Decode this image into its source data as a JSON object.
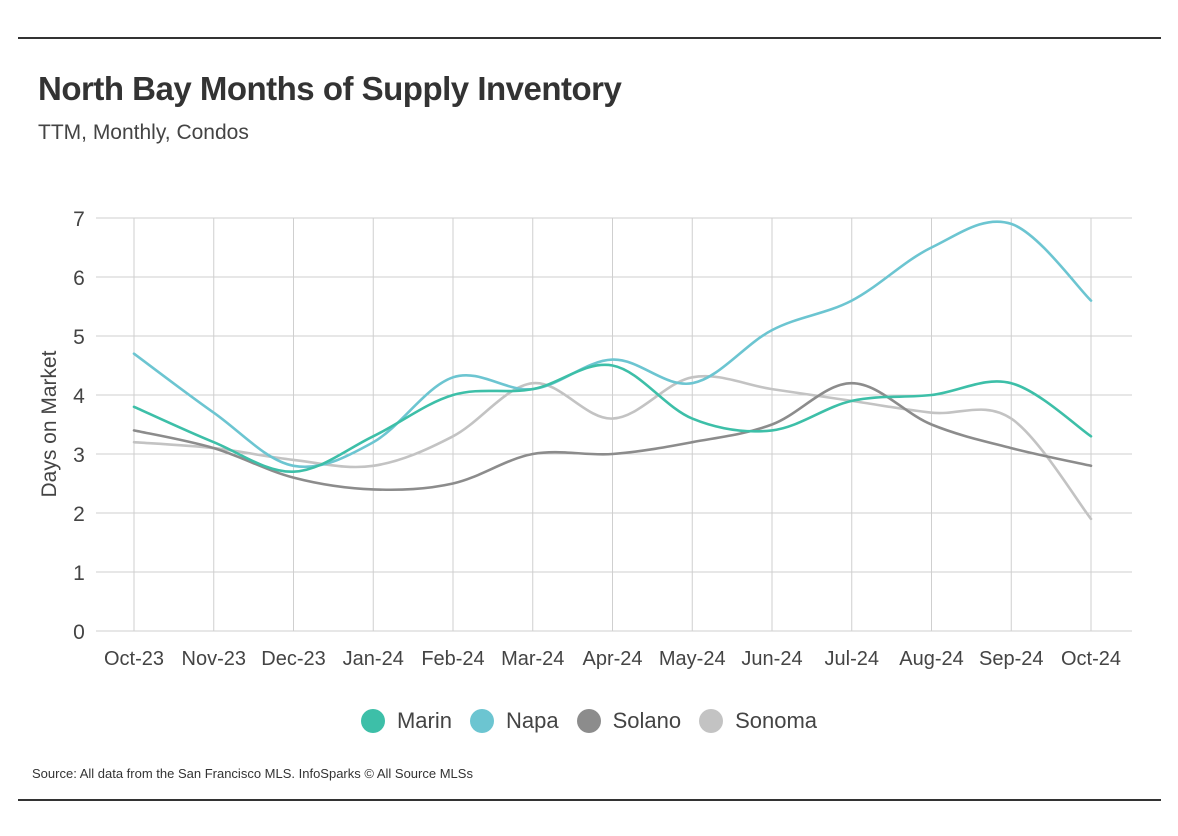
{
  "header": {
    "title": "North Bay Months of Supply Inventory",
    "subtitle": "TTM, Monthly, Condos"
  },
  "footer": {
    "source": "Source:  All data from the San Francisco MLS. InfoSparks © All Source MLSs"
  },
  "chart_data": {
    "type": "line",
    "title": "North Bay Months of Supply Inventory",
    "subtitle": "TTM, Monthly, Condos",
    "xlabel": "",
    "ylabel": "Days on Market",
    "ylim": [
      0,
      7
    ],
    "yticks": [
      "0",
      "1",
      "2",
      "3",
      "4",
      "5",
      "6",
      "7"
    ],
    "categories": [
      "Oct-23",
      "Nov-23",
      "Dec-23",
      "Jan-24",
      "Feb-24",
      "Mar-24",
      "Apr-24",
      "May-24",
      "Jun-24",
      "Jul-24",
      "Aug-24",
      "Sep-24",
      "Oct-24"
    ],
    "grid": true,
    "legend_position": "bottom-center",
    "series": [
      {
        "name": "Marin",
        "color": "#3dbfa8",
        "values": [
          3.8,
          3.2,
          2.7,
          3.3,
          4.0,
          4.1,
          4.5,
          3.6,
          3.4,
          3.9,
          4.0,
          4.2,
          3.3
        ]
      },
      {
        "name": "Napa",
        "color": "#6cc5d1",
        "values": [
          4.7,
          3.7,
          2.8,
          3.2,
          4.3,
          4.1,
          4.6,
          4.2,
          5.1,
          5.6,
          6.5,
          6.9,
          5.6
        ]
      },
      {
        "name": "Solano",
        "color": "#8c8c8c",
        "values": [
          3.4,
          3.1,
          2.6,
          2.4,
          2.5,
          3.0,
          3.0,
          3.2,
          3.5,
          4.2,
          3.5,
          3.1,
          2.8
        ]
      },
      {
        "name": "Sonoma",
        "color": "#c3c3c3",
        "values": [
          3.2,
          3.1,
          2.9,
          2.8,
          3.3,
          4.2,
          3.6,
          4.3,
          4.1,
          3.9,
          3.7,
          3.6,
          1.9
        ]
      }
    ]
  }
}
